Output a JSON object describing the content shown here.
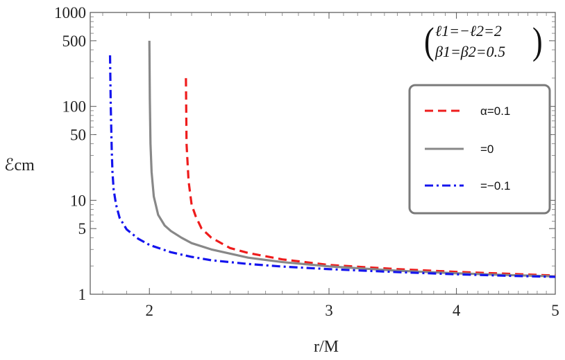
{
  "chart_data": {
    "type": "line",
    "xlabel": "r/M",
    "ylabel": "ℰcm",
    "x_scale": "log",
    "y_scale": "log",
    "xlim": [
      1.75,
      5.0
    ],
    "ylim": [
      1,
      1000
    ],
    "x_ticks": [
      2,
      3,
      4,
      5
    ],
    "y_ticks": [
      1,
      5,
      10,
      50,
      100,
      500,
      1000
    ],
    "grid": false,
    "legend_position": "right",
    "parameters": [
      "ℓ1=−ℓ2=2",
      "β1=β2=0.5"
    ],
    "series": [
      {
        "name": "α=0.1",
        "color": "#ee1c1c",
        "style": "dashed",
        "x": [
          2.172,
          2.175,
          2.185,
          2.2,
          2.22,
          2.25,
          2.3,
          2.4,
          2.5,
          2.7,
          3.0,
          3.5,
          4.0,
          4.5,
          5.0
        ],
        "y": [
          200,
          40,
          16,
          9.0,
          6.8,
          5.0,
          4.0,
          3.1,
          2.75,
          2.35,
          2.05,
          1.85,
          1.73,
          1.65,
          1.58
        ]
      },
      {
        "name": "=0",
        "color": "#888888",
        "style": "solid",
        "x": [
          2.0,
          2.002,
          2.005,
          2.01,
          2.02,
          2.04,
          2.07,
          2.1,
          2.15,
          2.2,
          2.3,
          2.5,
          2.7,
          3.0,
          3.5,
          4.0,
          4.5,
          5.0
        ],
        "y": [
          500,
          120,
          40,
          20,
          11,
          7.0,
          5.4,
          4.7,
          4.0,
          3.5,
          3.0,
          2.45,
          2.2,
          1.98,
          1.78,
          1.67,
          1.6,
          1.55
        ]
      },
      {
        "name": "=−0.1",
        "color": "#1414ee",
        "style": "dashdot",
        "x": [
          1.83,
          1.833,
          1.837,
          1.84,
          1.845,
          1.855,
          1.87,
          1.9,
          1.95,
          2.0,
          2.1,
          2.2,
          2.3,
          2.5,
          2.7,
          3.0,
          3.5,
          4.0,
          4.5,
          5.0
        ],
        "y": [
          350,
          100,
          35,
          20,
          13,
          9.0,
          6.5,
          4.9,
          3.9,
          3.35,
          2.8,
          2.5,
          2.3,
          2.1,
          1.97,
          1.85,
          1.72,
          1.63,
          1.57,
          1.53
        ]
      }
    ]
  }
}
